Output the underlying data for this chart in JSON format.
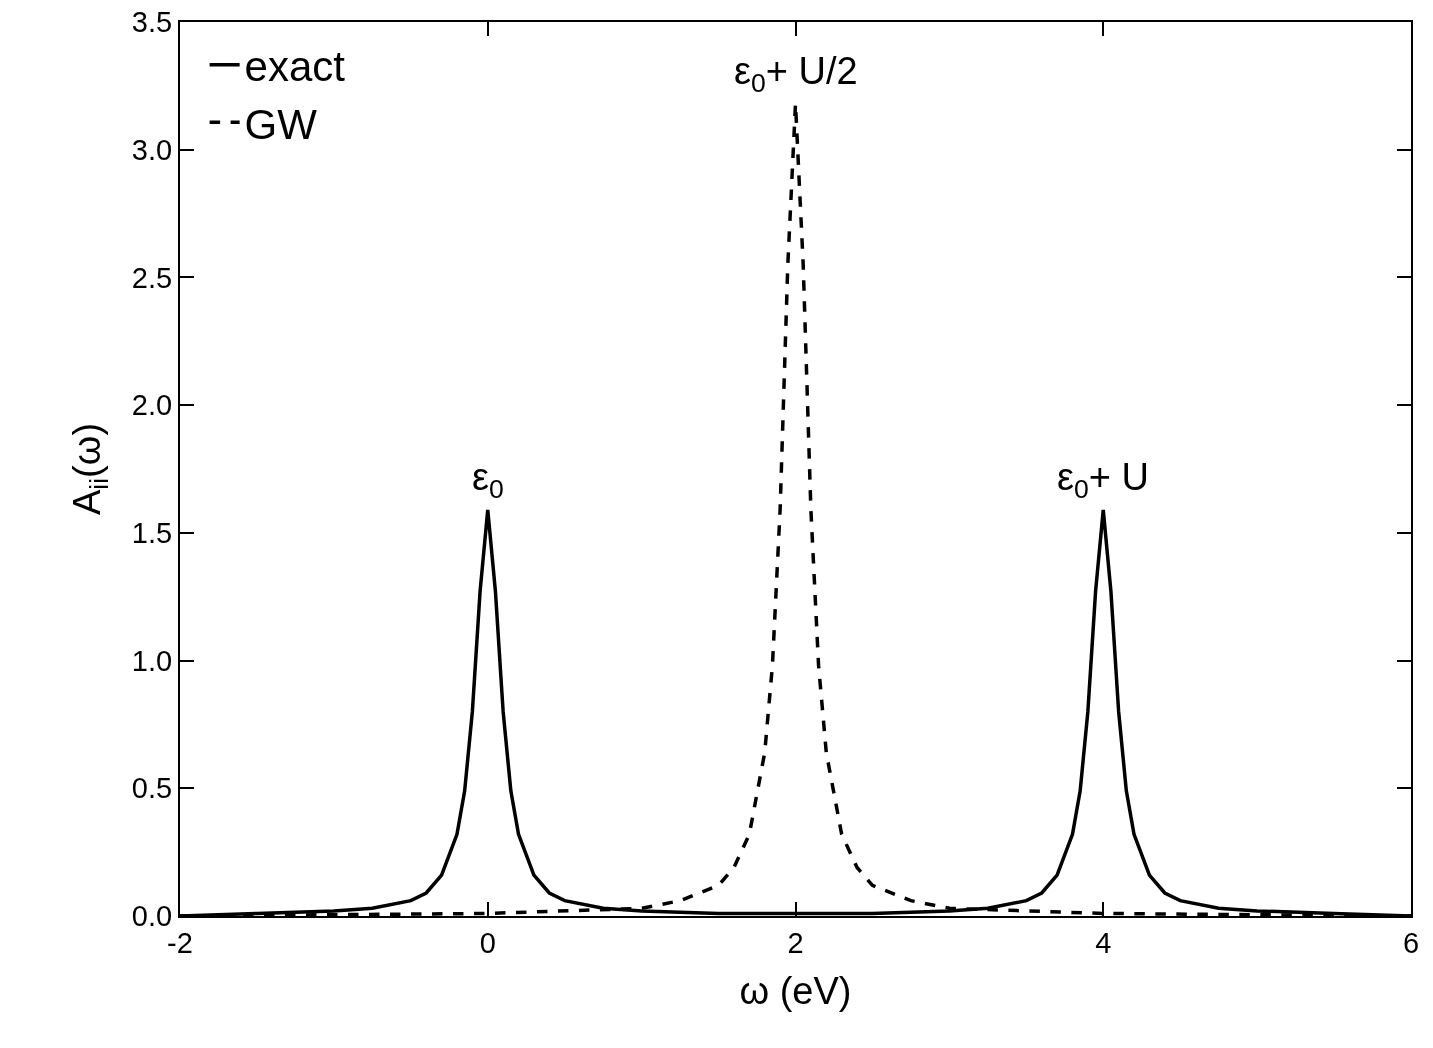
{
  "chart_data": {
    "type": "line",
    "xlabel": "ω (eV)",
    "ylabel": "A$_{ii}$(ω)",
    "xlim": [
      -2,
      6
    ],
    "xticks": [
      -2,
      0,
      2,
      4,
      6
    ],
    "ylim": [
      0,
      3.5
    ],
    "yticks": [
      {
        "value": 0,
        "label": "0.0"
      },
      {
        "value": 0.5,
        "label": "0.5"
      },
      {
        "value": 1,
        "label": "1.0"
      },
      {
        "value": 1.5,
        "label": "1.5"
      },
      {
        "value": 2,
        "label": "2.0"
      },
      {
        "value": 2.5,
        "label": "2.5"
      },
      {
        "value": 3,
        "label": "3.0"
      },
      {
        "value": 3.5,
        "label": "3.5"
      }
    ],
    "grid": false,
    "legend": "top left",
    "marker": "none",
    "series": [
      {
        "name": "exact",
        "color": "#000000",
        "line_style": "solid",
        "x": [
          -2,
          -1.5,
          -1,
          -0.75,
          -0.5,
          -0.4,
          -0.3,
          -0.2,
          -0.15,
          -0.1,
          -0.05,
          0,
          0.05,
          0.1,
          0.15,
          0.2,
          0.3,
          0.4,
          0.5,
          0.75,
          1,
          1.5,
          2,
          2.5,
          3,
          3.25,
          3.5,
          3.6,
          3.7,
          3.8,
          3.85,
          3.9,
          3.95,
          4,
          4.05,
          4.1,
          4.15,
          4.2,
          4.3,
          4.4,
          4.5,
          4.75,
          5,
          5.5,
          6
        ],
        "values": [
          0.0,
          0.01,
          0.02,
          0.03,
          0.06,
          0.09,
          0.16,
          0.32,
          0.49,
          0.8,
          1.27,
          1.59,
          1.27,
          0.8,
          0.49,
          0.32,
          0.16,
          0.09,
          0.06,
          0.03,
          0.02,
          0.01,
          0.01,
          0.01,
          0.02,
          0.03,
          0.06,
          0.09,
          0.16,
          0.32,
          0.49,
          0.8,
          1.27,
          1.59,
          1.27,
          0.8,
          0.49,
          0.32,
          0.16,
          0.09,
          0.06,
          0.03,
          0.02,
          0.01,
          0.0
        ]
      },
      {
        "name": "GW",
        "color": "#000000",
        "line_style": "dashed",
        "x": [
          -2,
          0,
          1,
          1.25,
          1.5,
          1.6,
          1.7,
          1.8,
          1.85,
          1.9,
          1.95,
          2,
          2.05,
          2.1,
          2.15,
          2.2,
          2.3,
          2.4,
          2.5,
          2.75,
          3,
          4,
          6
        ],
        "values": [
          0.0,
          0.01,
          0.03,
          0.06,
          0.12,
          0.19,
          0.32,
          0.64,
          0.98,
          1.59,
          2.55,
          3.18,
          2.55,
          1.59,
          0.98,
          0.64,
          0.32,
          0.19,
          0.12,
          0.06,
          0.03,
          0.01,
          0.0
        ]
      }
    ],
    "annotations": [
      {
        "text": "ε$_{0}$",
        "x": 0,
        "y": 1.59
      },
      {
        "text": "ε$_{0}$+ U/2",
        "x": 2,
        "y": 3.18
      },
      {
        "text": "ε$_{0}$+ U",
        "x": 4,
        "y": 1.59
      }
    ]
  }
}
